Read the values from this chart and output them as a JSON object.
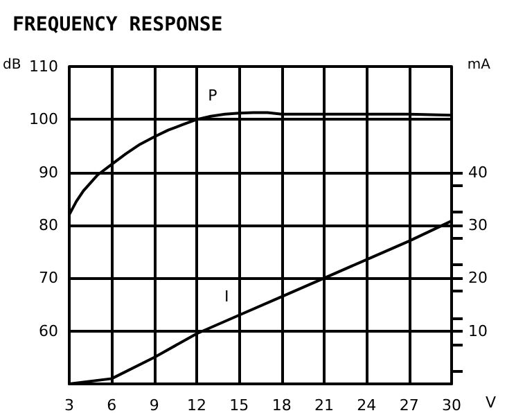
{
  "chart_data": {
    "type": "line",
    "title": "FREQUENCY RESPONSE",
    "xlabel": "V",
    "ylabel": "dB",
    "y2label": "mA",
    "series": [
      {
        "name": "P",
        "color": "#000000",
        "x": [
          3,
          3.5,
          4,
          5,
          6,
          7,
          8,
          9,
          10,
          11,
          12,
          13,
          14,
          15,
          16,
          17,
          18,
          21,
          24,
          27,
          30
        ],
        "values": [
          82,
          84.5,
          86.5,
          89.5,
          91.5,
          93.5,
          95.3,
          96.7,
          98,
          99,
          100,
          100.6,
          101,
          101.2,
          101.3,
          101.3,
          101,
          101,
          101,
          101,
          100.8
        ]
      },
      {
        "name": "I",
        "color": "#000000",
        "axis": "y2",
        "x": [
          3,
          6,
          9,
          12,
          15,
          18,
          21,
          24,
          27,
          30
        ],
        "values": [
          0,
          1,
          5,
          9.5,
          13,
          16.5,
          20,
          23.5,
          27,
          30.8
        ]
      }
    ],
    "xlim": [
      3,
      30
    ],
    "xticks": [
      3,
      6,
      9,
      12,
      15,
      18,
      21,
      24,
      27,
      30
    ],
    "ylim": [
      50,
      110
    ],
    "yticks": [
      60,
      70,
      80,
      90,
      100,
      110
    ],
    "y2lim": [
      0,
      60
    ],
    "y2ticks": [
      {
        "value": 2.5,
        "label": null
      },
      {
        "value": 7.5,
        "label": null
      },
      10,
      {
        "value": 12.5,
        "label": null
      },
      {
        "value": 17.5,
        "label": null
      },
      20,
      {
        "value": 22.5,
        "label": null
      },
      {
        "value": 27.5,
        "label": null
      },
      30,
      {
        "value": 32.5,
        "label": null
      },
      {
        "value": 37.5,
        "label": null
      },
      40
    ],
    "grid": true,
    "marker": "none",
    "line_style": "solid"
  }
}
